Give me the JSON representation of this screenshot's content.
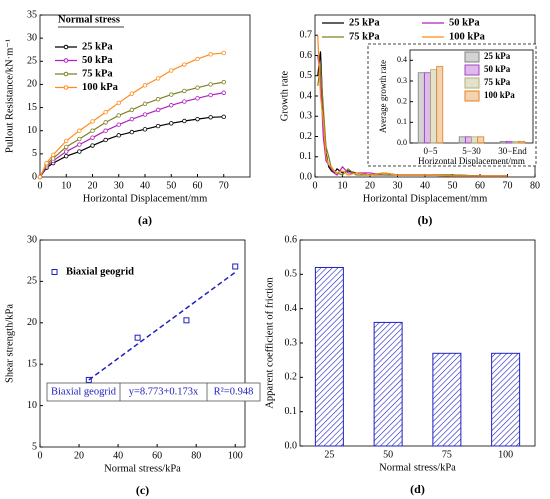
{
  "chart_data": [
    {
      "type": "line",
      "panel_label": "(a)",
      "x_label": "Horizontal Displacement/mm",
      "y_label": "Pullout Resistance/kN·m⁻¹",
      "legend_title": "Normal stress",
      "markers": true,
      "x": [
        0,
        2.5,
        5,
        10,
        15,
        20,
        25,
        30,
        35,
        40,
        45,
        50,
        55,
        60,
        65,
        70
      ],
      "series": [
        {
          "name": "25 kPa",
          "color": "#000000",
          "values": [
            0,
            2,
            3,
            4.5,
            5.5,
            6.8,
            8,
            9,
            9.7,
            10.3,
            11,
            11.6,
            12.1,
            12.5,
            12.9,
            13
          ]
        },
        {
          "name": "50 kPa",
          "color": "#b020c0",
          "values": [
            0,
            2.3,
            3.5,
            5.5,
            7,
            8.5,
            10,
            11.3,
            12.5,
            13.5,
            14.5,
            15.5,
            16.3,
            17,
            17.7,
            18.2
          ]
        },
        {
          "name": "75 kPa",
          "color": "#808020",
          "values": [
            0,
            2.7,
            4,
            6.5,
            8.2,
            10,
            11.8,
            13.3,
            14.5,
            15.8,
            16.8,
            17.8,
            18.6,
            19.3,
            20,
            20.5
          ]
        },
        {
          "name": "100 kPa",
          "color": "#ff8c1a",
          "values": [
            0,
            3,
            4.8,
            7.8,
            10,
            12,
            14,
            16,
            18,
            19.8,
            21.3,
            23,
            24.3,
            25.5,
            26.5,
            26.8
          ]
        }
      ],
      "xlim": [
        0,
        80
      ],
      "xticks": [
        0,
        10,
        20,
        30,
        40,
        50,
        60,
        70
      ],
      "ylim": [
        0,
        35
      ],
      "yticks": [
        0,
        5,
        10,
        15,
        20,
        25,
        30,
        35
      ]
    },
    {
      "type": "line",
      "panel_label": "(b)",
      "x_label": "Horizontal Displacement/mm",
      "y_label": "Growth rate",
      "x": [
        1,
        2,
        3,
        4,
        5,
        6,
        7,
        8,
        10,
        12,
        15,
        20,
        25,
        30,
        40,
        50,
        60,
        70
      ],
      "series": [
        {
          "name": "25 kPa",
          "color": "#000000",
          "values": [
            0.5,
            0.62,
            0.3,
            0.12,
            0.05,
            0.03,
            0.02,
            0.04,
            0.02,
            0.03,
            0.02,
            0.01,
            0.02,
            0.01,
            0.01,
            0.01,
            0.005,
            0.005
          ]
        },
        {
          "name": "50 kPa",
          "color": "#b020c0",
          "values": [
            0.6,
            0.5,
            0.2,
            0.08,
            0.06,
            0.04,
            0.02,
            0.01,
            0.05,
            0.02,
            0.02,
            0.02,
            0.01,
            0.01,
            0.01,
            0.005,
            0.005,
            0.005
          ]
        },
        {
          "name": "75 kPa",
          "color": "#808020",
          "values": [
            0.45,
            0.55,
            0.35,
            0.15,
            0.1,
            0.04,
            0.03,
            0.02,
            0.01,
            0.04,
            0.01,
            0.01,
            0.01,
            0.01,
            0.01,
            0.01,
            0.005,
            0.005
          ]
        },
        {
          "name": "100 kPa",
          "color": "#ff8c1a",
          "values": [
            0.7,
            0.4,
            0.28,
            0.1,
            0.06,
            0.05,
            0.03,
            0.02,
            0.03,
            0.01,
            0.02,
            0.01,
            0.02,
            0.01,
            0.01,
            0.005,
            0.005,
            0.005
          ]
        }
      ],
      "xlim": [
        0,
        80
      ],
      "xticks": [
        0,
        10,
        20,
        30,
        40,
        50,
        60,
        70,
        80
      ],
      "ylim": [
        0,
        0.8
      ],
      "yticks": [
        {
          "value": 0,
          "label": "0.0"
        },
        0.1,
        0.2,
        0.3,
        0.4,
        0.5,
        0.6,
        0.7
      ]
    },
    {
      "type": "bar",
      "x_label": "Horizontal Displacement/mm",
      "y_label": "Average growth rate",
      "categories": [
        "0−5",
        "5−30",
        "30−End"
      ],
      "series": [
        {
          "name": "25 kPa",
          "color": "#808080",
          "values": [
            0.34,
            0.03,
            0.008
          ]
        },
        {
          "name": "50 kPa",
          "color": "#a040c0",
          "values": [
            0.34,
            0.03,
            0.008
          ]
        },
        {
          "name": "75 kPa",
          "color": "#b0b070",
          "values": [
            0.355,
            0.03,
            0.008
          ]
        },
        {
          "name": "100 kPa",
          "color": "#e08020",
          "values": [
            0.37,
            0.03,
            0.008
          ]
        }
      ],
      "ylim": [
        0,
        0.45
      ],
      "yticks": [
        {
          "value": 0,
          "label": "0.0"
        },
        0.1,
        0.2,
        0.3,
        0.4
      ]
    },
    {
      "type": "scatter",
      "panel_label": "(c)",
      "x_label": "Normal stress/kPa",
      "y_label": "Shear strength/kPa",
      "series": [
        {
          "name": "Biaxial geogrid",
          "color": "#2020c0",
          "x": [
            25,
            50,
            75,
            100
          ],
          "values": [
            13.1,
            18.2,
            20.3,
            26.8
          ]
        }
      ],
      "fit_line": {
        "x": [
          25,
          100
        ],
        "values": [
          13.1,
          26.1
        ],
        "color": "#2020c0"
      },
      "annotations": [
        "Biaxial geogrid",
        "y=8.773+0.173x",
        "R²=0.948"
      ],
      "xlim": [
        0,
        105
      ],
      "xticks": [
        0,
        20,
        40,
        60,
        80,
        100
      ],
      "ylim": [
        5,
        30
      ],
      "yticks": [
        5,
        10,
        15,
        20,
        25,
        30
      ]
    },
    {
      "type": "bar",
      "panel_label": "(d)",
      "x_label": "Normal stress/kPa",
      "y_label": "Apparent coefficient of friction",
      "categories": [
        "25",
        "50",
        "75",
        "100"
      ],
      "values": [
        0.52,
        0.36,
        0.27,
        0.27
      ],
      "color": "#2020c0",
      "ylim": [
        0,
        0.6
      ],
      "yticks": [
        {
          "value": 0,
          "label": "0.0"
        },
        0.1,
        0.2,
        0.3,
        0.4,
        0.5,
        0.6
      ]
    }
  ]
}
